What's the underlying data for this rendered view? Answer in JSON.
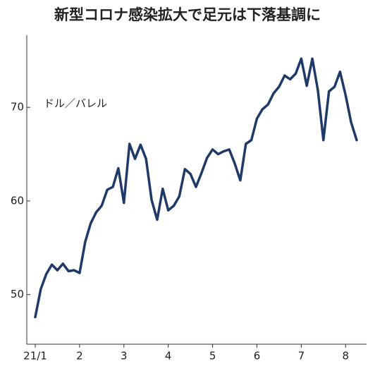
{
  "chart_data": {
    "type": "line",
    "title": "新型コロナ感染拡大で足元は下落基調に",
    "y_label": "ドル／バレル",
    "categories": [
      "21/1",
      null,
      null,
      null,
      null,
      null,
      null,
      null,
      "2",
      null,
      null,
      null,
      null,
      null,
      null,
      null,
      "3",
      null,
      null,
      null,
      null,
      null,
      null,
      null,
      "4",
      null,
      null,
      null,
      null,
      null,
      null,
      null,
      "5",
      null,
      null,
      null,
      null,
      null,
      null,
      null,
      "6",
      null,
      null,
      null,
      null,
      null,
      null,
      null,
      "7",
      null,
      null,
      null,
      null,
      null,
      null,
      null,
      "8",
      null,
      null
    ],
    "series": [
      {
        "color": "#1f3a68",
        "values": [
          47.6,
          50.6,
          52.2,
          53.2,
          52.6,
          53.3,
          52.5,
          52.6,
          52.3,
          55.6,
          57.6,
          58.8,
          59.5,
          61.2,
          61.5,
          63.5,
          59.8,
          66.1,
          64.5,
          66.0,
          64.5,
          60.1,
          58.0,
          61.3,
          59.0,
          59.5,
          60.5,
          63.4,
          62.9,
          61.5,
          63.0,
          64.6,
          65.5,
          65.0,
          65.3,
          65.5,
          64.0,
          62.2,
          66.1,
          66.5,
          68.8,
          69.8,
          70.3,
          71.5,
          72.2,
          73.4,
          73.0,
          73.6,
          75.2,
          72.3,
          75.2,
          71.8,
          66.5,
          71.7,
          72.2,
          73.8,
          71.3,
          68.4,
          66.5
        ]
      }
    ],
    "ylim": [
      44.7,
      77.7
    ],
    "yticks": [
      50,
      60,
      70
    ]
  }
}
